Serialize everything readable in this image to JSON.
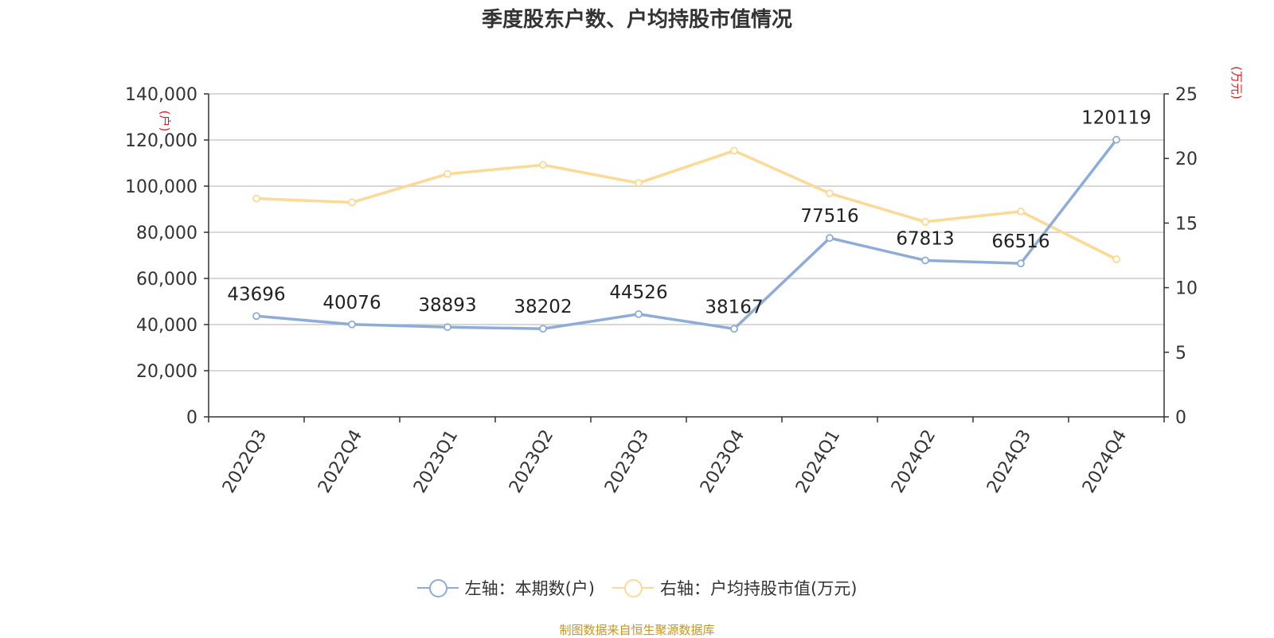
{
  "title": "季度股东户数、户均持股市值情况",
  "footer": "制图数据来自恒生聚源数据库",
  "colors": {
    "left_series": "#8eacd8",
    "right_series": "#fcd994",
    "axis_unit": "#e02020"
  },
  "chart_data": {
    "type": "line",
    "categories": [
      "2022Q3",
      "2022Q4",
      "2023Q1",
      "2023Q2",
      "2023Q3",
      "2023Q4",
      "2024Q1",
      "2024Q2",
      "2024Q3",
      "2024Q4"
    ],
    "left_axis": {
      "unit": "(户)",
      "ylim": [
        0,
        140000
      ],
      "ticks": [
        0,
        20000,
        40000,
        60000,
        80000,
        100000,
        120000,
        140000
      ],
      "tick_labels": [
        "0",
        "20,000",
        "40,000",
        "60,000",
        "80,000",
        "100,000",
        "120,000",
        "140,000"
      ]
    },
    "right_axis": {
      "unit": "(万元)",
      "ylim": [
        0,
        25
      ],
      "ticks": [
        0,
        5,
        10,
        15,
        20,
        25
      ],
      "tick_labels": [
        "0",
        "5",
        "10",
        "15",
        "20",
        "25"
      ]
    },
    "series": [
      {
        "name": "左轴：本期数(户)",
        "axis": "left",
        "values": [
          43696,
          40076,
          38893,
          38202,
          44526,
          38167,
          77516,
          67813,
          66516,
          120119
        ],
        "data_labels": [
          "43696",
          "40076",
          "38893",
          "38202",
          "44526",
          "38167",
          "77516",
          "67813",
          "66516",
          "120119"
        ]
      },
      {
        "name": "右轴：户均持股市值(万元)",
        "axis": "right",
        "values": [
          16.9,
          16.6,
          18.8,
          19.5,
          18.1,
          20.6,
          17.3,
          15.1,
          15.9,
          12.2
        ]
      }
    ],
    "grid": true,
    "legend_position": "bottom-center"
  }
}
